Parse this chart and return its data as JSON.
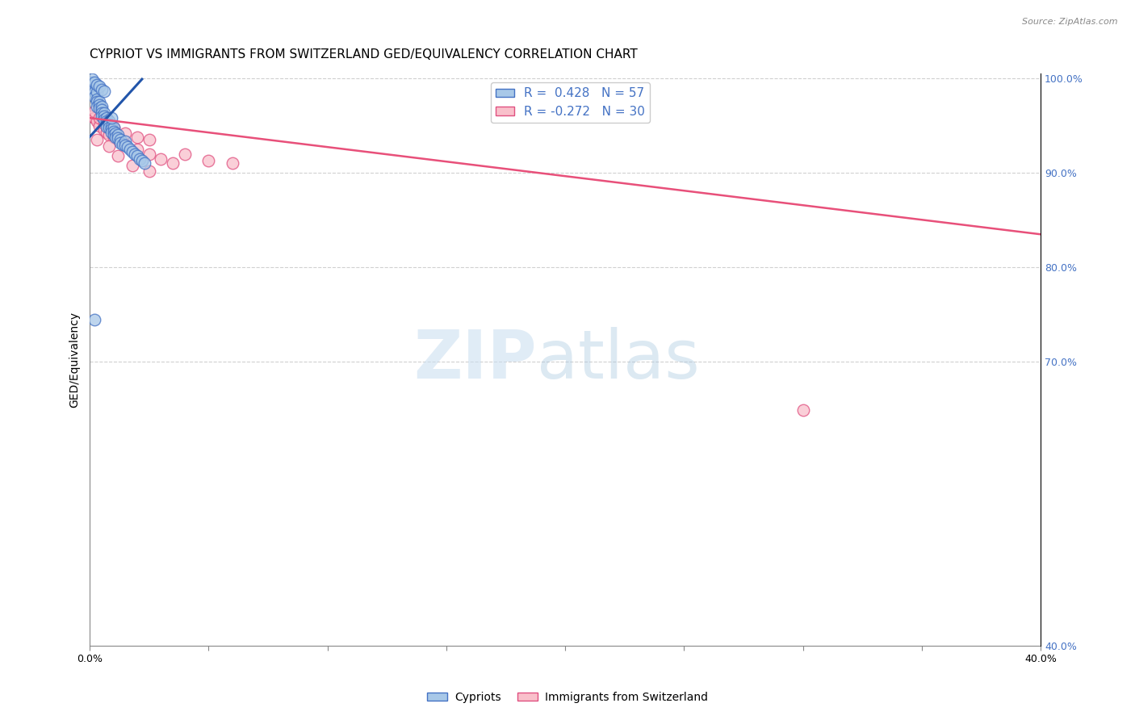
{
  "title": "CYPRIOT VS IMMIGRANTS FROM SWITZERLAND GED/EQUIVALENCY CORRELATION CHART",
  "source": "Source: ZipAtlas.com",
  "ylabel": "GED/Equivalency",
  "xmin": 0.0,
  "xmax": 0.4,
  "ymin": 0.4,
  "ymax": 1.005,
  "xticks": [
    0.0,
    0.05,
    0.1,
    0.15,
    0.2,
    0.25,
    0.3,
    0.35,
    0.4
  ],
  "yticks": [
    0.4,
    0.5,
    0.6,
    0.7,
    0.8,
    0.9,
    1.0
  ],
  "right_ytick_labels": [
    "40.0%",
    "",
    "",
    "70.0%",
    "80.0%",
    "90.0%",
    "100.0%"
  ],
  "R_blue": 0.428,
  "N_blue": 57,
  "R_pink": -0.272,
  "N_pink": 30,
  "blue_fill_color": "#a8c8e8",
  "pink_fill_color": "#f9c0cb",
  "blue_edge_color": "#4472c4",
  "pink_edge_color": "#e05080",
  "blue_line_color": "#2255aa",
  "pink_line_color": "#e8507a",
  "legend_label_blue": "Cypriots",
  "legend_label_pink": "Immigrants from Switzerland",
  "blue_scatter_x": [
    0.001,
    0.001,
    0.002,
    0.002,
    0.002,
    0.003,
    0.003,
    0.003,
    0.003,
    0.004,
    0.004,
    0.004,
    0.005,
    0.005,
    0.005,
    0.005,
    0.006,
    0.006,
    0.006,
    0.007,
    0.007,
    0.007,
    0.007,
    0.008,
    0.008,
    0.008,
    0.009,
    0.009,
    0.009,
    0.01,
    0.01,
    0.01,
    0.011,
    0.011,
    0.012,
    0.012,
    0.013,
    0.013,
    0.014,
    0.015,
    0.015,
    0.016,
    0.017,
    0.018,
    0.019,
    0.02,
    0.021,
    0.022,
    0.023,
    0.001,
    0.002,
    0.003,
    0.004,
    0.005,
    0.006,
    0.009,
    0.002
  ],
  "blue_scatter_y": [
    0.996,
    0.99,
    0.988,
    0.985,
    0.98,
    0.985,
    0.978,
    0.975,
    0.97,
    0.975,
    0.972,
    0.968,
    0.97,
    0.967,
    0.963,
    0.96,
    0.963,
    0.96,
    0.956,
    0.958,
    0.955,
    0.952,
    0.949,
    0.955,
    0.951,
    0.948,
    0.949,
    0.946,
    0.943,
    0.948,
    0.944,
    0.94,
    0.942,
    0.938,
    0.94,
    0.937,
    0.935,
    0.932,
    0.93,
    0.933,
    0.929,
    0.927,
    0.925,
    0.922,
    0.92,
    0.918,
    0.915,
    0.913,
    0.91,
    0.999,
    0.996,
    0.993,
    0.991,
    0.988,
    0.986,
    0.958,
    0.745
  ],
  "pink_scatter_x": [
    0.001,
    0.002,
    0.003,
    0.004,
    0.006,
    0.007,
    0.008,
    0.01,
    0.012,
    0.015,
    0.02,
    0.025,
    0.03,
    0.035,
    0.04,
    0.05,
    0.06,
    0.002,
    0.004,
    0.006,
    0.01,
    0.015,
    0.02,
    0.025,
    0.003,
    0.008,
    0.012,
    0.018,
    0.025,
    0.3
  ],
  "pink_scatter_y": [
    0.96,
    0.958,
    0.955,
    0.95,
    0.945,
    0.943,
    0.94,
    0.938,
    0.935,
    0.93,
    0.925,
    0.92,
    0.915,
    0.91,
    0.92,
    0.913,
    0.91,
    0.965,
    0.958,
    0.952,
    0.948,
    0.942,
    0.938,
    0.935,
    0.935,
    0.928,
    0.918,
    0.908,
    0.902,
    0.649
  ],
  "blue_trend_x": [
    0.0,
    0.022
  ],
  "blue_trend_y": [
    0.938,
    0.999
  ],
  "pink_trend_x": [
    0.0,
    0.4
  ],
  "pink_trend_y": [
    0.958,
    0.835
  ],
  "grid_color": "#d0d0d0",
  "bg_color": "#ffffff",
  "title_fontsize": 11,
  "axis_label_fontsize": 10,
  "tick_fontsize": 9,
  "legend_fontsize": 11,
  "tick_color": "#4472c4"
}
